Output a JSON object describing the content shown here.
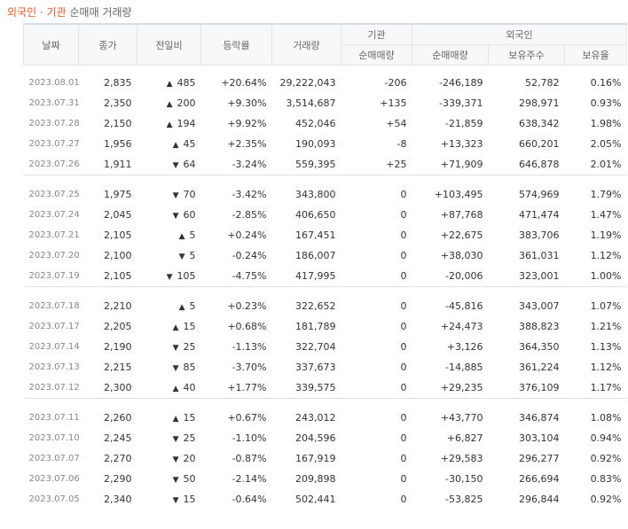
{
  "title": {
    "part1": "외국인 · 기관",
    "part2": "순매매 거래량"
  },
  "columns": {
    "date": "날짜",
    "close": "종가",
    "change": "전일비",
    "rate": "등락률",
    "volume": "거래량",
    "inst_group": "기관",
    "inst_net": "순매매량",
    "foreign_group": "외국인",
    "foreign_net": "순매매량",
    "foreign_hold": "보유주수",
    "foreign_ratio": "보유율"
  },
  "colors": {
    "up": "#d21f1f",
    "down": "#1f5ec6",
    "accent": "#e4572e"
  },
  "groups": [
    [
      {
        "date": "2023.08.01",
        "close": "2,835",
        "dir": "up",
        "change": "485",
        "rate": "+20.64%",
        "volume": "29,222,043",
        "inst": "-206",
        "foreign": "-246,189",
        "hold": "52,782",
        "ratio": "0.16%"
      },
      {
        "date": "2023.07.31",
        "close": "2,350",
        "dir": "up",
        "change": "200",
        "rate": "+9.30%",
        "volume": "3,514,687",
        "inst": "+135",
        "foreign": "-339,371",
        "hold": "298,971",
        "ratio": "0.93%"
      },
      {
        "date": "2023.07.28",
        "close": "2,150",
        "dir": "up",
        "change": "194",
        "rate": "+9.92%",
        "volume": "452,046",
        "inst": "+54",
        "foreign": "-21,859",
        "hold": "638,342",
        "ratio": "1.98%"
      },
      {
        "date": "2023.07.27",
        "close": "1,956",
        "dir": "up",
        "change": "45",
        "rate": "+2.35%",
        "volume": "190,093",
        "inst": "-8",
        "foreign": "+13,323",
        "hold": "660,201",
        "ratio": "2.05%"
      },
      {
        "date": "2023.07.26",
        "close": "1,911",
        "dir": "down",
        "change": "64",
        "rate": "-3.24%",
        "volume": "559,395",
        "inst": "+25",
        "foreign": "+71,909",
        "hold": "646,878",
        "ratio": "2.01%"
      }
    ],
    [
      {
        "date": "2023.07.25",
        "close": "1,975",
        "dir": "down",
        "change": "70",
        "rate": "-3.42%",
        "volume": "343,800",
        "inst": "0",
        "foreign": "+103,495",
        "hold": "574,969",
        "ratio": "1.79%"
      },
      {
        "date": "2023.07.24",
        "close": "2,045",
        "dir": "down",
        "change": "60",
        "rate": "-2.85%",
        "volume": "406,650",
        "inst": "0",
        "foreign": "+87,768",
        "hold": "471,474",
        "ratio": "1.47%"
      },
      {
        "date": "2023.07.21",
        "close": "2,105",
        "dir": "up",
        "change": "5",
        "rate": "+0.24%",
        "volume": "167,451",
        "inst": "0",
        "foreign": "+22,675",
        "hold": "383,706",
        "ratio": "1.19%"
      },
      {
        "date": "2023.07.20",
        "close": "2,100",
        "dir": "down",
        "change": "5",
        "rate": "-0.24%",
        "volume": "186,007",
        "inst": "0",
        "foreign": "+38,030",
        "hold": "361,031",
        "ratio": "1.12%"
      },
      {
        "date": "2023.07.19",
        "close": "2,105",
        "dir": "down",
        "change": "105",
        "rate": "-4.75%",
        "volume": "417,995",
        "inst": "0",
        "foreign": "-20,006",
        "hold": "323,001",
        "ratio": "1.00%"
      }
    ],
    [
      {
        "date": "2023.07.18",
        "close": "2,210",
        "dir": "up",
        "change": "5",
        "rate": "+0.23%",
        "volume": "322,652",
        "inst": "0",
        "foreign": "-45,816",
        "hold": "343,007",
        "ratio": "1.07%"
      },
      {
        "date": "2023.07.17",
        "close": "2,205",
        "dir": "up",
        "change": "15",
        "rate": "+0.68%",
        "volume": "181,789",
        "inst": "0",
        "foreign": "+24,473",
        "hold": "388,823",
        "ratio": "1.21%"
      },
      {
        "date": "2023.07.14",
        "close": "2,190",
        "dir": "down",
        "change": "25",
        "rate": "-1.13%",
        "volume": "322,704",
        "inst": "0",
        "foreign": "+3,126",
        "hold": "364,350",
        "ratio": "1.13%"
      },
      {
        "date": "2023.07.13",
        "close": "2,215",
        "dir": "down",
        "change": "85",
        "rate": "-3.70%",
        "volume": "337,673",
        "inst": "0",
        "foreign": "-14,885",
        "hold": "361,224",
        "ratio": "1.12%"
      },
      {
        "date": "2023.07.12",
        "close": "2,300",
        "dir": "up",
        "change": "40",
        "rate": "+1.77%",
        "volume": "339,575",
        "inst": "0",
        "foreign": "+29,235",
        "hold": "376,109",
        "ratio": "1.17%"
      }
    ],
    [
      {
        "date": "2023.07.11",
        "close": "2,260",
        "dir": "up",
        "change": "15",
        "rate": "+0.67%",
        "volume": "243,012",
        "inst": "0",
        "foreign": "+43,770",
        "hold": "346,874",
        "ratio": "1.08%"
      },
      {
        "date": "2023.07.10",
        "close": "2,245",
        "dir": "down",
        "change": "25",
        "rate": "-1.10%",
        "volume": "204,596",
        "inst": "0",
        "foreign": "+6,827",
        "hold": "303,104",
        "ratio": "0.94%"
      },
      {
        "date": "2023.07.07",
        "close": "2,270",
        "dir": "down",
        "change": "20",
        "rate": "-0.87%",
        "volume": "167,919",
        "inst": "0",
        "foreign": "+29,583",
        "hold": "296,277",
        "ratio": "0.92%"
      },
      {
        "date": "2023.07.06",
        "close": "2,290",
        "dir": "down",
        "change": "50",
        "rate": "-2.14%",
        "volume": "209,898",
        "inst": "0",
        "foreign": "-30,150",
        "hold": "266,694",
        "ratio": "0.83%"
      },
      {
        "date": "2023.07.05",
        "close": "2,340",
        "dir": "down",
        "change": "15",
        "rate": "-0.64%",
        "volume": "502,441",
        "inst": "0",
        "foreign": "-53,825",
        "hold": "296,844",
        "ratio": "0.92%"
      }
    ]
  ]
}
